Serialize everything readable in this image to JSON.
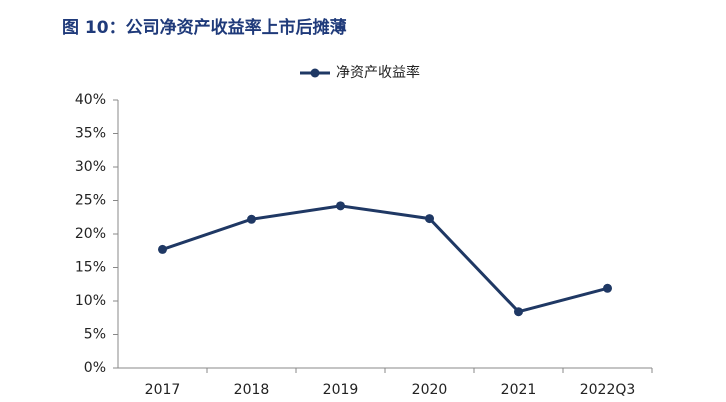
{
  "chart_data": {
    "type": "line",
    "title": "图 10：公司净资产收益率上市后摊薄",
    "categories": [
      "2017",
      "2018",
      "2019",
      "2020",
      "2021",
      "2022Q3"
    ],
    "series": [
      {
        "name": "净资产收益率",
        "color": "#1f3864",
        "values": [
          17.7,
          22.2,
          24.2,
          22.3,
          8.4,
          11.9
        ]
      }
    ],
    "ylim": [
      0,
      40
    ],
    "yticks": [
      {
        "value": 0,
        "label": "0%"
      },
      {
        "value": 5,
        "label": "5%"
      },
      {
        "value": 10,
        "label": "10%"
      },
      {
        "value": 15,
        "label": "15%"
      },
      {
        "value": 20,
        "label": "20%"
      },
      {
        "value": 25,
        "label": "25%"
      },
      {
        "value": 30,
        "label": "30%"
      },
      {
        "value": 35,
        "label": "35%"
      },
      {
        "value": 40,
        "label": "40%"
      }
    ],
    "grid": false,
    "legend": "top"
  }
}
